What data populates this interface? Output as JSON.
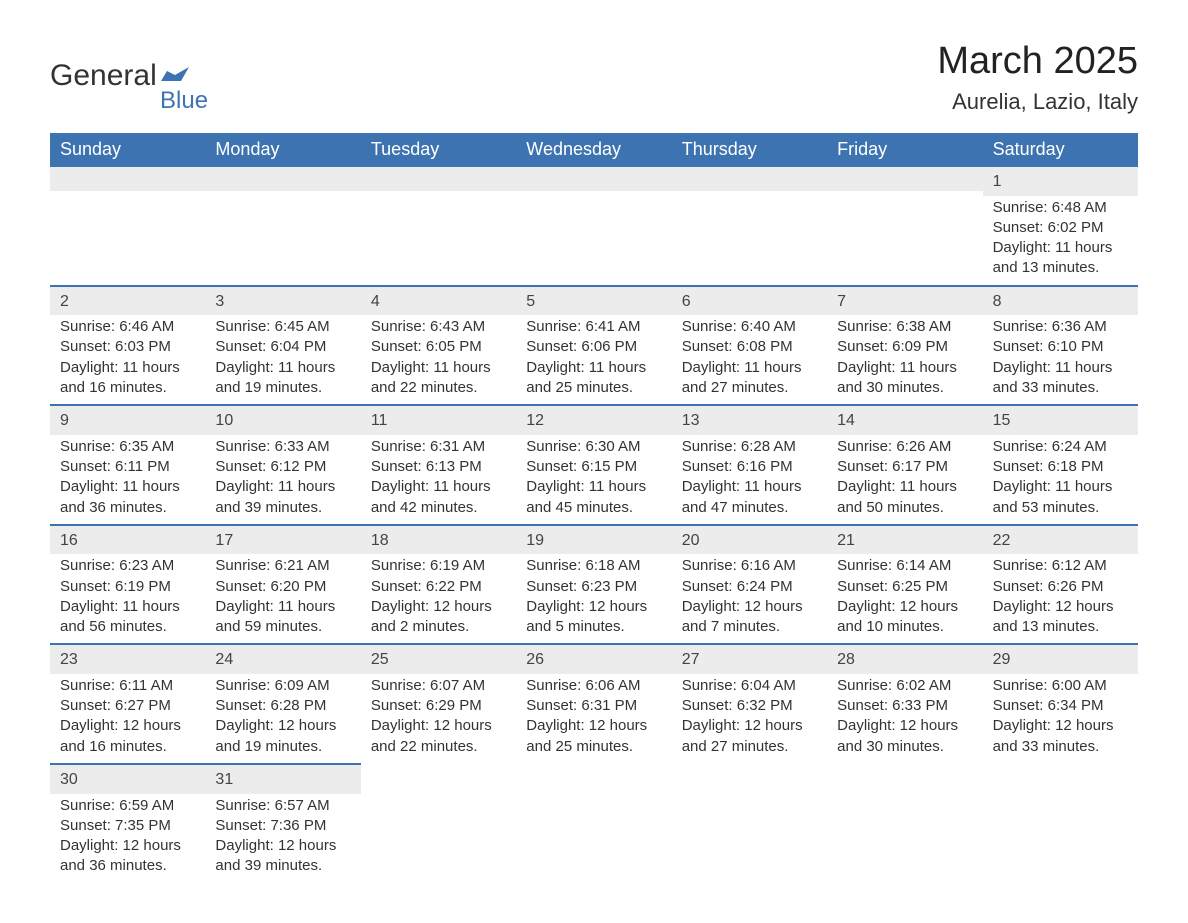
{
  "logo": {
    "general": "General",
    "blue": "Blue",
    "flag_color": "#3d73b1"
  },
  "title": {
    "month": "March 2025",
    "location": "Aurelia, Lazio, Italy"
  },
  "colors": {
    "header_bg": "#3d73b1",
    "header_text": "#ffffff",
    "daynum_bg": "#ececec",
    "divider": "#3d73b1",
    "body_text": "#333333",
    "page_bg": "#ffffff"
  },
  "typography": {
    "title_fontsize": 38,
    "location_fontsize": 22,
    "dow_fontsize": 18,
    "daynum_fontsize": 16,
    "body_fontsize": 15
  },
  "layout": {
    "columns": 7,
    "rows": 6
  },
  "days_of_week": [
    "Sunday",
    "Monday",
    "Tuesday",
    "Wednesday",
    "Thursday",
    "Friday",
    "Saturday"
  ],
  "weeks": [
    [
      {
        "empty": true
      },
      {
        "empty": true
      },
      {
        "empty": true
      },
      {
        "empty": true
      },
      {
        "empty": true
      },
      {
        "empty": true
      },
      {
        "num": "1",
        "sunrise": "Sunrise: 6:48 AM",
        "sunset": "Sunset: 6:02 PM",
        "daylight": "Daylight: 11 hours and 13 minutes."
      }
    ],
    [
      {
        "num": "2",
        "sunrise": "Sunrise: 6:46 AM",
        "sunset": "Sunset: 6:03 PM",
        "daylight": "Daylight: 11 hours and 16 minutes."
      },
      {
        "num": "3",
        "sunrise": "Sunrise: 6:45 AM",
        "sunset": "Sunset: 6:04 PM",
        "daylight": "Daylight: 11 hours and 19 minutes."
      },
      {
        "num": "4",
        "sunrise": "Sunrise: 6:43 AM",
        "sunset": "Sunset: 6:05 PM",
        "daylight": "Daylight: 11 hours and 22 minutes."
      },
      {
        "num": "5",
        "sunrise": "Sunrise: 6:41 AM",
        "sunset": "Sunset: 6:06 PM",
        "daylight": "Daylight: 11 hours and 25 minutes."
      },
      {
        "num": "6",
        "sunrise": "Sunrise: 6:40 AM",
        "sunset": "Sunset: 6:08 PM",
        "daylight": "Daylight: 11 hours and 27 minutes."
      },
      {
        "num": "7",
        "sunrise": "Sunrise: 6:38 AM",
        "sunset": "Sunset: 6:09 PM",
        "daylight": "Daylight: 11 hours and 30 minutes."
      },
      {
        "num": "8",
        "sunrise": "Sunrise: 6:36 AM",
        "sunset": "Sunset: 6:10 PM",
        "daylight": "Daylight: 11 hours and 33 minutes."
      }
    ],
    [
      {
        "num": "9",
        "sunrise": "Sunrise: 6:35 AM",
        "sunset": "Sunset: 6:11 PM",
        "daylight": "Daylight: 11 hours and 36 minutes."
      },
      {
        "num": "10",
        "sunrise": "Sunrise: 6:33 AM",
        "sunset": "Sunset: 6:12 PM",
        "daylight": "Daylight: 11 hours and 39 minutes."
      },
      {
        "num": "11",
        "sunrise": "Sunrise: 6:31 AM",
        "sunset": "Sunset: 6:13 PM",
        "daylight": "Daylight: 11 hours and 42 minutes."
      },
      {
        "num": "12",
        "sunrise": "Sunrise: 6:30 AM",
        "sunset": "Sunset: 6:15 PM",
        "daylight": "Daylight: 11 hours and 45 minutes."
      },
      {
        "num": "13",
        "sunrise": "Sunrise: 6:28 AM",
        "sunset": "Sunset: 6:16 PM",
        "daylight": "Daylight: 11 hours and 47 minutes."
      },
      {
        "num": "14",
        "sunrise": "Sunrise: 6:26 AM",
        "sunset": "Sunset: 6:17 PM",
        "daylight": "Daylight: 11 hours and 50 minutes."
      },
      {
        "num": "15",
        "sunrise": "Sunrise: 6:24 AM",
        "sunset": "Sunset: 6:18 PM",
        "daylight": "Daylight: 11 hours and 53 minutes."
      }
    ],
    [
      {
        "num": "16",
        "sunrise": "Sunrise: 6:23 AM",
        "sunset": "Sunset: 6:19 PM",
        "daylight": "Daylight: 11 hours and 56 minutes."
      },
      {
        "num": "17",
        "sunrise": "Sunrise: 6:21 AM",
        "sunset": "Sunset: 6:20 PM",
        "daylight": "Daylight: 11 hours and 59 minutes."
      },
      {
        "num": "18",
        "sunrise": "Sunrise: 6:19 AM",
        "sunset": "Sunset: 6:22 PM",
        "daylight": "Daylight: 12 hours and 2 minutes."
      },
      {
        "num": "19",
        "sunrise": "Sunrise: 6:18 AM",
        "sunset": "Sunset: 6:23 PM",
        "daylight": "Daylight: 12 hours and 5 minutes."
      },
      {
        "num": "20",
        "sunrise": "Sunrise: 6:16 AM",
        "sunset": "Sunset: 6:24 PM",
        "daylight": "Daylight: 12 hours and 7 minutes."
      },
      {
        "num": "21",
        "sunrise": "Sunrise: 6:14 AM",
        "sunset": "Sunset: 6:25 PM",
        "daylight": "Daylight: 12 hours and 10 minutes."
      },
      {
        "num": "22",
        "sunrise": "Sunrise: 6:12 AM",
        "sunset": "Sunset: 6:26 PM",
        "daylight": "Daylight: 12 hours and 13 minutes."
      }
    ],
    [
      {
        "num": "23",
        "sunrise": "Sunrise: 6:11 AM",
        "sunset": "Sunset: 6:27 PM",
        "daylight": "Daylight: 12 hours and 16 minutes."
      },
      {
        "num": "24",
        "sunrise": "Sunrise: 6:09 AM",
        "sunset": "Sunset: 6:28 PM",
        "daylight": "Daylight: 12 hours and 19 minutes."
      },
      {
        "num": "25",
        "sunrise": "Sunrise: 6:07 AM",
        "sunset": "Sunset: 6:29 PM",
        "daylight": "Daylight: 12 hours and 22 minutes."
      },
      {
        "num": "26",
        "sunrise": "Sunrise: 6:06 AM",
        "sunset": "Sunset: 6:31 PM",
        "daylight": "Daylight: 12 hours and 25 minutes."
      },
      {
        "num": "27",
        "sunrise": "Sunrise: 6:04 AM",
        "sunset": "Sunset: 6:32 PM",
        "daylight": "Daylight: 12 hours and 27 minutes."
      },
      {
        "num": "28",
        "sunrise": "Sunrise: 6:02 AM",
        "sunset": "Sunset: 6:33 PM",
        "daylight": "Daylight: 12 hours and 30 minutes."
      },
      {
        "num": "29",
        "sunrise": "Sunrise: 6:00 AM",
        "sunset": "Sunset: 6:34 PM",
        "daylight": "Daylight: 12 hours and 33 minutes."
      }
    ],
    [
      {
        "num": "30",
        "sunrise": "Sunrise: 6:59 AM",
        "sunset": "Sunset: 7:35 PM",
        "daylight": "Daylight: 12 hours and 36 minutes."
      },
      {
        "num": "31",
        "sunrise": "Sunrise: 6:57 AM",
        "sunset": "Sunset: 7:36 PM",
        "daylight": "Daylight: 12 hours and 39 minutes."
      },
      {
        "empty": true
      },
      {
        "empty": true
      },
      {
        "empty": true
      },
      {
        "empty": true
      },
      {
        "empty": true
      }
    ]
  ]
}
